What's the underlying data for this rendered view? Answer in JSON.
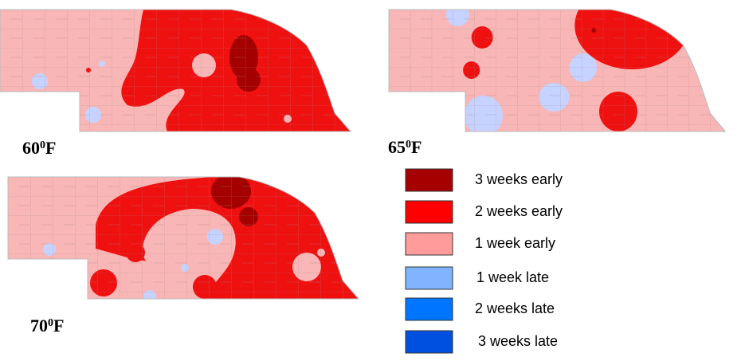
{
  "maps": [
    {
      "label": {
        "number": "60",
        "degree": "0",
        "unit": "F"
      }
    },
    {
      "label": {
        "number": "65",
        "degree": "0",
        "unit": "F"
      }
    },
    {
      "label": {
        "number": "70",
        "degree": "0",
        "unit": "F"
      }
    }
  ],
  "legend": {
    "items": [
      {
        "label": "3 weeks early",
        "color": "#a60000"
      },
      {
        "label": "2 weeks early",
        "color": "#ff0000"
      },
      {
        "label": "1 week early",
        "color": "#ff9b9b"
      },
      {
        "label": "1 week late",
        "color": "#80b4ff"
      },
      {
        "label": "2 weeks late",
        "color": "#0075ff"
      },
      {
        "label": "3 weeks late",
        "color": "#0050e0"
      }
    ]
  }
}
